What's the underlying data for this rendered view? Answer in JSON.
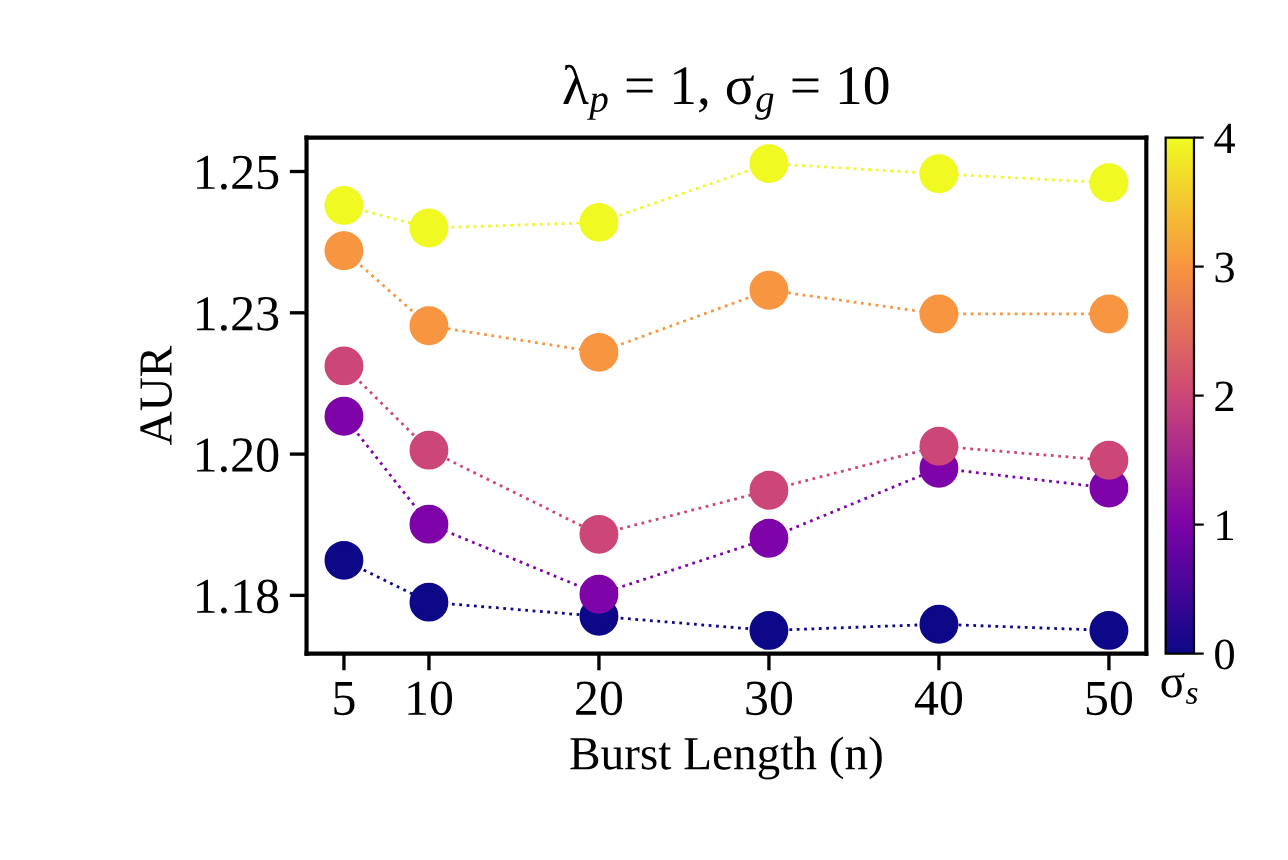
{
  "chart_data": {
    "type": "line",
    "title": "λ$_{p}$ = 1, σ$_{g}$ = 10",
    "xlabel": "Burst Length (n)",
    "ylabel": "AUR",
    "clabel": "σ$_{s}$",
    "x": [
      5,
      10,
      20,
      30,
      40,
      50
    ],
    "series": [
      {
        "color": "#0d0887",
        "values": [
          1.1812,
          1.1738,
          1.1713,
          1.1688,
          1.1699,
          1.1688
        ]
      },
      {
        "color": "#7e03a8",
        "values": [
          1.2067,
          1.1876,
          1.1752,
          1.1851,
          1.1975,
          1.194
        ]
      },
      {
        "color": "#cc4778",
        "values": [
          1.2156,
          1.2007,
          1.1858,
          1.1936,
          1.2014,
          1.1989
        ]
      },
      {
        "color": "#f89540",
        "values": [
          1.236,
          1.2227,
          1.218,
          1.229,
          1.2248,
          1.2248
        ]
      },
      {
        "color": "#f0f921",
        "values": [
          1.244,
          1.24,
          1.241,
          1.2514,
          1.2496,
          1.248
        ]
      }
    ],
    "xlim": [
      2.8,
      52.2
    ],
    "xticks": [
      5,
      10,
      20,
      30,
      40,
      50
    ],
    "ylim": [
      1.1647,
      1.256
    ],
    "yticks": [
      {
        "value": 1.175,
        "label": "1.18"
      },
      {
        "value": 1.2,
        "label": "1.20"
      },
      {
        "value": 1.225,
        "label": "1.23"
      },
      {
        "value": 1.25,
        "label": "1.25"
      }
    ],
    "clim": [
      0,
      4
    ],
    "cticks": [
      0,
      1,
      2,
      3,
      4
    ],
    "marker": "circle",
    "line_style": "dotted",
    "grid": false,
    "legend": false
  }
}
